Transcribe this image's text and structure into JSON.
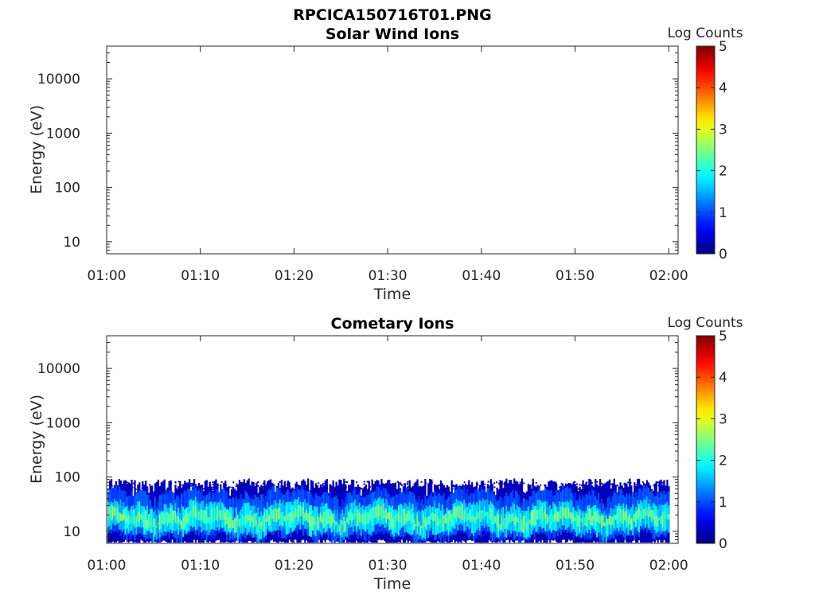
{
  "figure_title": "RPCICA150716T01.PNG",
  "chart_data": [
    {
      "type": "heatmap",
      "title": "Solar Wind Ions",
      "xlabel": "Time",
      "ylabel": "Energy (eV)",
      "yscale": "log",
      "ylim": [
        6,
        40000
      ],
      "xlim": [
        "01:00",
        "02:01"
      ],
      "x_ticks": [
        "01:00",
        "01:10",
        "01:20",
        "01:30",
        "01:40",
        "01:50",
        "02:00"
      ],
      "y_ticks": [
        "10",
        "100",
        "1000",
        "10000"
      ],
      "y_tick_values": [
        10,
        100,
        1000,
        10000
      ],
      "colorbar": {
        "label": "Log Counts",
        "range": [
          0,
          5
        ],
        "ticks": [
          "0",
          "1",
          "2",
          "3",
          "4",
          "5"
        ],
        "colormap": "jet"
      },
      "data_summary": "no counts recorded",
      "bands": []
    },
    {
      "type": "heatmap",
      "title": "Cometary Ions",
      "xlabel": "Time",
      "ylabel": "Energy (eV)",
      "yscale": "log",
      "ylim": [
        6,
        40000
      ],
      "xlim": [
        "01:00",
        "02:01"
      ],
      "x_ticks": [
        "01:00",
        "01:10",
        "01:20",
        "01:30",
        "01:40",
        "01:50",
        "02:00"
      ],
      "y_ticks": [
        "10",
        "100",
        "1000",
        "10000"
      ],
      "y_tick_values": [
        10,
        100,
        1000,
        10000
      ],
      "colorbar": {
        "label": "Log Counts",
        "range": [
          0,
          5
        ],
        "ticks": [
          "0",
          "1",
          "2",
          "3",
          "4",
          "5"
        ],
        "colormap": "jet"
      },
      "data_summary": "counts between ~6 eV and ~80 eV throughout 01:00-02:00, peak log counts ~2.5 near 15-25 eV",
      "bands": [
        {
          "e_min": 6,
          "e_max": 80,
          "log_counts": 0.3
        },
        {
          "e_min": 8,
          "e_max": 50,
          "log_counts": 1.0
        },
        {
          "e_min": 10,
          "e_max": 30,
          "log_counts": 1.7
        },
        {
          "e_min": 14,
          "e_max": 22,
          "log_counts": 2.3
        }
      ]
    }
  ]
}
